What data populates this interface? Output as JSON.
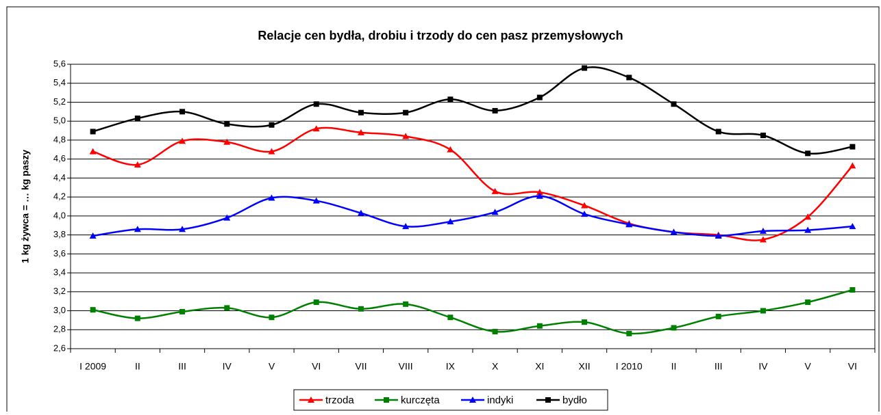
{
  "chart_data": {
    "type": "line",
    "title": "Relacje cen bydła, drobiu i trzody do cen pasz przemysłowych",
    "y_label": "1 kg żywca = … kg paszy",
    "categories": [
      "I 2009",
      "II",
      "III",
      "IV",
      "V",
      "VI",
      "VII",
      "VIII",
      "IX",
      "X",
      "XI",
      "XII",
      "I 2010",
      "II",
      "III",
      "IV",
      "V",
      "VI"
    ],
    "series": [
      {
        "name": "trzoda",
        "color": "#ff0000",
        "marker": "triangle",
        "values": [
          4.68,
          4.54,
          4.79,
          4.78,
          4.68,
          4.92,
          4.88,
          4.84,
          4.7,
          4.26,
          4.25,
          4.11,
          3.92,
          3.83,
          3.8,
          3.75,
          3.99,
          4.53
        ]
      },
      {
        "name": "kurczęta",
        "color": "#008000",
        "marker": "square",
        "values": [
          3.01,
          2.92,
          2.99,
          3.03,
          2.93,
          3.09,
          3.02,
          3.07,
          2.93,
          2.78,
          2.84,
          2.88,
          2.76,
          2.82,
          2.94,
          3.0,
          3.09,
          3.22
        ]
      },
      {
        "name": "indyki",
        "color": "#0000ff",
        "marker": "triangle",
        "values": [
          3.79,
          3.86,
          3.86,
          3.98,
          4.19,
          4.16,
          4.03,
          3.89,
          3.94,
          4.04,
          4.21,
          4.02,
          3.91,
          3.83,
          3.79,
          3.84,
          3.85,
          3.89
        ]
      },
      {
        "name": "bydło",
        "color": "#000000",
        "marker": "square",
        "values": [
          4.89,
          5.03,
          5.1,
          4.97,
          4.96,
          5.18,
          5.09,
          5.09,
          5.23,
          5.11,
          5.25,
          5.56,
          5.46,
          5.18,
          4.89,
          4.85,
          4.66,
          4.73
        ]
      }
    ],
    "ylim": [
      2.6,
      5.6
    ],
    "yticks": [
      {
        "value": 2.6,
        "label": "2,6"
      },
      {
        "value": 2.8,
        "label": "2,8"
      },
      {
        "value": 3.0,
        "label": "3,0"
      },
      {
        "value": 3.2,
        "label": "3,2"
      },
      {
        "value": 3.4,
        "label": "3,4"
      },
      {
        "value": 3.6,
        "label": "3,6"
      },
      {
        "value": 3.8,
        "label": "3,8"
      },
      {
        "value": 4.0,
        "label": "4,0"
      },
      {
        "value": 4.2,
        "label": "4,2"
      },
      {
        "value": 4.4,
        "label": "4,4"
      },
      {
        "value": 4.6,
        "label": "4,6"
      },
      {
        "value": 4.8,
        "label": "4,8"
      },
      {
        "value": 5.0,
        "label": "5,0"
      },
      {
        "value": 5.2,
        "label": "5,2"
      },
      {
        "value": 5.4,
        "label": "5,4"
      },
      {
        "value": 5.6,
        "label": "5,6"
      }
    ],
    "grid": true,
    "smooth": true,
    "legend": "bottom"
  }
}
